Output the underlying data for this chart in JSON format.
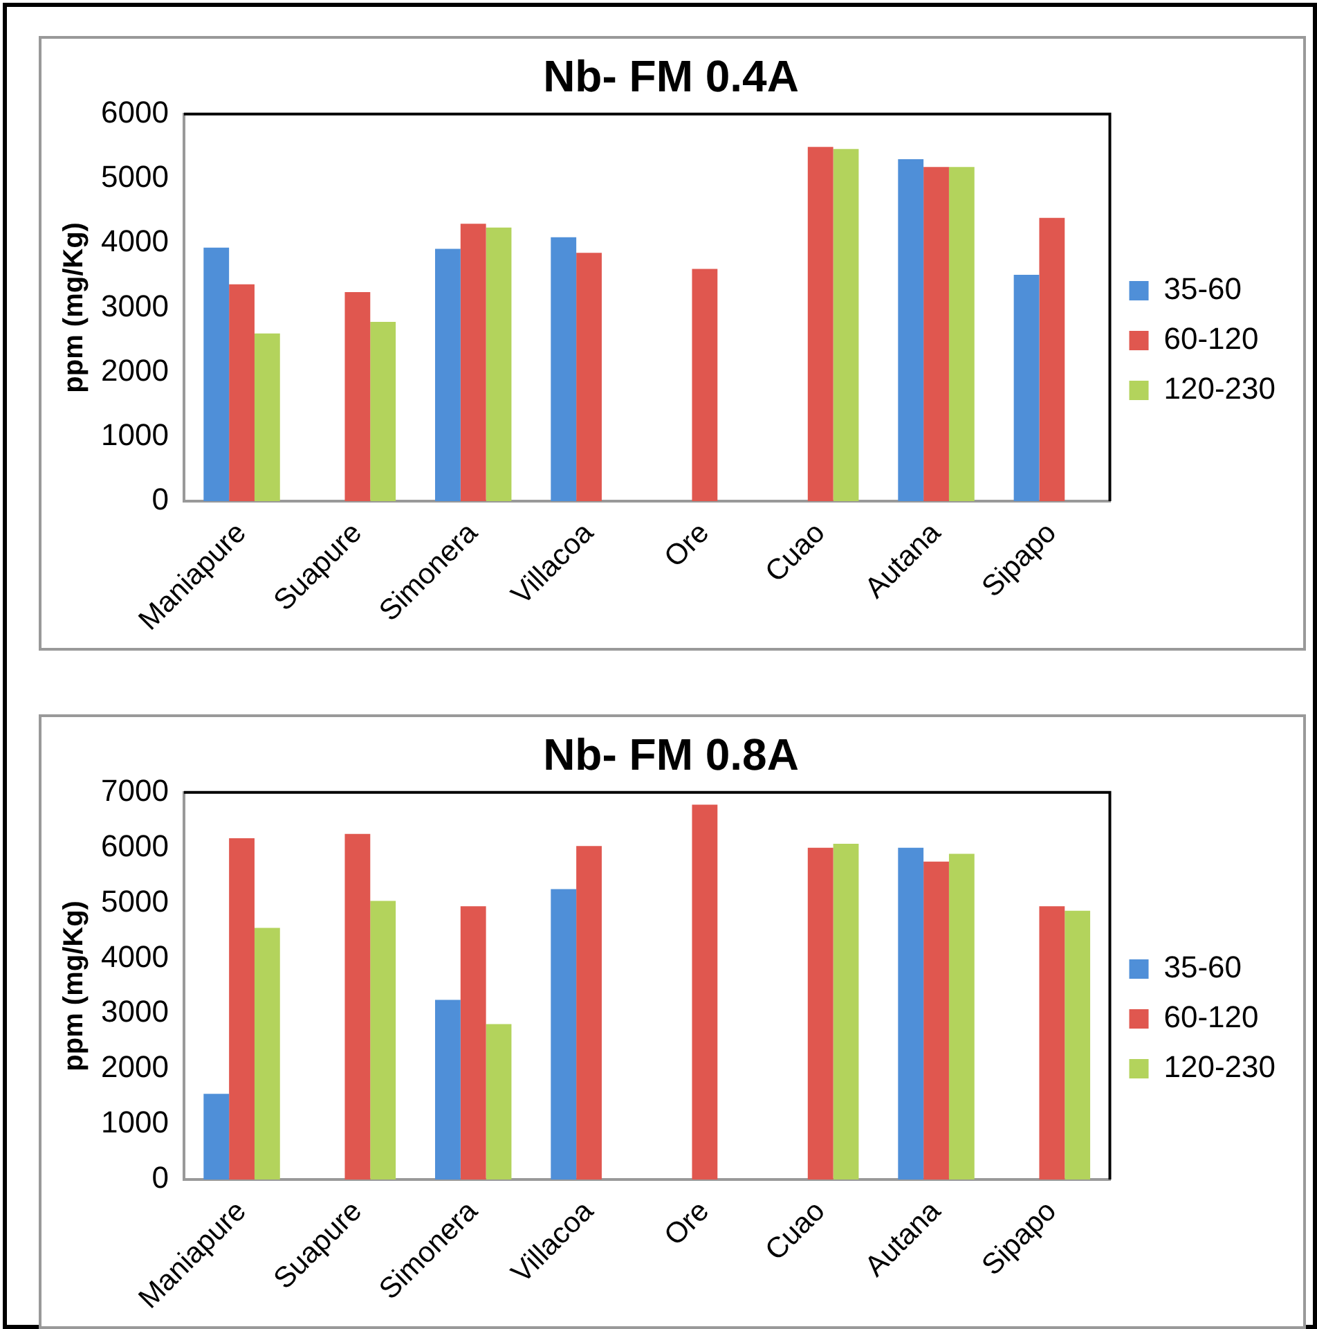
{
  "chart_data": [
    {
      "type": "bar",
      "title": "Nb- FM 0.4A",
      "ylabel": "ppm (mg/Kg)",
      "categories": [
        "Maniapure",
        "Suapure",
        "Simonera",
        "Villacoa",
        "Ore",
        "Cuao",
        "Autana",
        "Sipapo"
      ],
      "series": [
        {
          "name": "35-60",
          "color": "#4f8fd8",
          "values": [
            3930,
            null,
            3910,
            4090,
            null,
            null,
            5300,
            3510
          ]
        },
        {
          "name": "60-120",
          "color": "#e0574f",
          "values": [
            3360,
            3240,
            4300,
            3850,
            3600,
            5490,
            5180,
            4390
          ]
        },
        {
          "name": "120-230",
          "color": "#b3d35c",
          "values": [
            2600,
            2780,
            4240,
            null,
            null,
            5460,
            5180,
            null
          ]
        }
      ],
      "ylim": [
        0,
        6000
      ],
      "yticks": [
        0,
        1000,
        2000,
        3000,
        4000,
        5000,
        6000
      ],
      "grid": false,
      "legend": "right"
    },
    {
      "type": "bar",
      "title": "Nb- FM 0.8A",
      "ylabel": "ppm (mg/Kg)",
      "categories": [
        "Maniapure",
        "Suapure",
        "Simonera",
        "Villacoa",
        "Ore",
        "Cuao",
        "Autana",
        "Sipapo"
      ],
      "series": [
        {
          "name": "35-60",
          "color": "#4f8fd8",
          "values": [
            1550,
            null,
            3250,
            5250,
            null,
            null,
            6000,
            null
          ]
        },
        {
          "name": "60-120",
          "color": "#e0574f",
          "values": [
            6170,
            6250,
            4940,
            6030,
            6780,
            6000,
            5750,
            4940
          ]
        },
        {
          "name": "120-230",
          "color": "#b3d35c",
          "values": [
            4550,
            5040,
            2810,
            null,
            null,
            6070,
            5890,
            4860
          ]
        }
      ],
      "ylim": [
        0,
        7000
      ],
      "yticks": [
        0,
        1000,
        2000,
        3000,
        4000,
        5000,
        6000,
        7000
      ],
      "grid": false,
      "legend": "right"
    }
  ]
}
